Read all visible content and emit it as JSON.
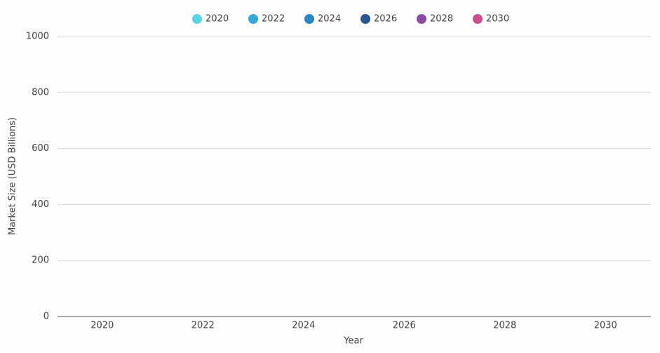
{
  "chart_data": {
    "type": "bar",
    "x_label": "Year",
    "y_label": "Market Size (USD Billions)",
    "categories": [
      "2020",
      "2022",
      "2024",
      "2026",
      "2028",
      "2030"
    ],
    "series": [
      {
        "name": "2020",
        "color": "#5bd3e6",
        "values": [
          null,
          null,
          null,
          null,
          null,
          null
        ]
      },
      {
        "name": "2022",
        "color": "#35a8d6",
        "values": [
          null,
          null,
          null,
          null,
          null,
          null
        ]
      },
      {
        "name": "2024",
        "color": "#2b86c1",
        "values": [
          null,
          null,
          null,
          null,
          null,
          null
        ]
      },
      {
        "name": "2026",
        "color": "#2c5594",
        "values": [
          null,
          null,
          null,
          null,
          null,
          null
        ]
      },
      {
        "name": "2028",
        "color": "#8a4fa3",
        "values": [
          null,
          null,
          null,
          null,
          null,
          null
        ]
      },
      {
        "name": "2030",
        "color": "#c8508f",
        "values": [
          null,
          null,
          null,
          null,
          null,
          null
        ]
      }
    ],
    "ylim": [
      0,
      1000
    ],
    "yticks": [
      0,
      200,
      400,
      600,
      800,
      1000
    ],
    "grid": true,
    "legend": "top"
  }
}
